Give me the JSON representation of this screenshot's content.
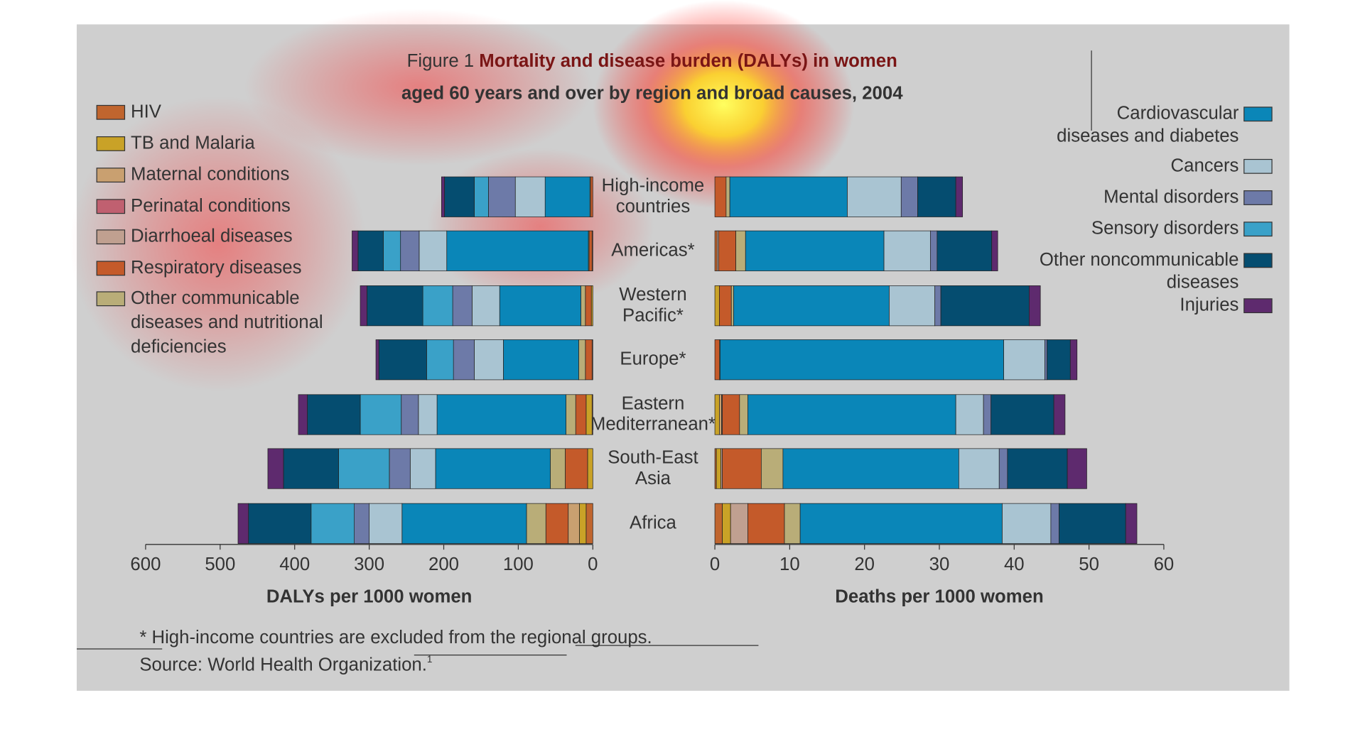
{
  "title": {
    "label": "Figure 1",
    "lines": [
      "Mortality and disease burden (DALYs) in women",
      "aged 60 years and over by region and broad causes, 2004"
    ]
  },
  "regions": [
    [
      "High-income",
      "countries"
    ],
    [
      "Americas*"
    ],
    [
      "Western",
      "Pacific*"
    ],
    [
      "Europe*"
    ],
    [
      "Eastern",
      "Mediterranean*"
    ],
    [
      "South-East",
      "Asia"
    ],
    [
      "Africa"
    ]
  ],
  "causes": [
    {
      "name": [
        "HIV"
      ],
      "color": "#c0652e"
    },
    {
      "name": [
        "TB and Malaria"
      ],
      "color": "#c9a227"
    },
    {
      "name": [
        "Maternal conditions"
      ],
      "color": "#c9a070"
    },
    {
      "name": [
        "Perinatal conditions"
      ],
      "color": "#c06070"
    },
    {
      "name": [
        "Diarrhoeal diseases"
      ],
      "color": "#c0a090"
    },
    {
      "name": [
        "Respiratory diseases"
      ],
      "color": "#c45a2a"
    },
    {
      "name": [
        "Other communicable",
        "diseases and nutritional",
        "deficiencies"
      ],
      "color": "#b9ad78"
    },
    {
      "name": [
        "Cardiovascular",
        "diseases and diabetes"
      ],
      "color": "#0a86b8"
    },
    {
      "name": [
        "Cancers"
      ],
      "color": "#a9c4d2"
    },
    {
      "name": [
        "Mental disorders"
      ],
      "color": "#6d7aa8"
    },
    {
      "name": [
        "Sensory disorders"
      ],
      "color": "#3aa1c8"
    },
    {
      "name": [
        "Other noncommunicable",
        "diseases"
      ],
      "color": "#054d70"
    },
    {
      "name": [
        "Injuries"
      ],
      "color": "#5e2a6e"
    }
  ],
  "chart_data": [
    {
      "type": "bar",
      "orientation": "horizontal",
      "stacked": true,
      "xlabel": "DALYs per 1000 women",
      "xlim": [
        600,
        0
      ],
      "xticks": [
        600,
        500,
        400,
        300,
        200,
        100,
        0
      ],
      "series": [
        {
          "values": [
            0,
            1,
            0,
            1,
            1,
            0,
            9
          ]
        },
        {
          "values": [
            0,
            0,
            2,
            0,
            8,
            7,
            9
          ]
        },
        {
          "values": [
            0,
            0,
            0,
            0,
            0,
            0,
            15
          ]
        },
        {
          "values": [
            0,
            0,
            0,
            0,
            0,
            0,
            0
          ]
        },
        {
          "values": [
            0,
            0,
            0,
            0,
            0,
            0,
            0
          ]
        },
        {
          "values": [
            3,
            4,
            8,
            9,
            14,
            30,
            30
          ]
        },
        {
          "values": [
            1,
            1,
            6,
            9,
            13,
            20,
            26
          ]
        },
        {
          "values": [
            60,
            190,
            109,
            101,
            173,
            154,
            167
          ]
        },
        {
          "values": [
            40,
            37,
            37,
            39,
            25,
            34,
            44
          ]
        },
        {
          "values": [
            36,
            25,
            26,
            28,
            23,
            28,
            20
          ]
        },
        {
          "values": [
            19,
            23,
            40,
            36,
            55,
            68,
            58
          ]
        },
        {
          "values": [
            40,
            34,
            75,
            64,
            71,
            74,
            84
          ]
        },
        {
          "values": [
            4,
            8,
            9,
            4,
            12,
            21,
            14
          ]
        }
      ]
    },
    {
      "type": "bar",
      "orientation": "horizontal",
      "stacked": true,
      "xlabel": "Deaths per 1000 women",
      "xlim": [
        0,
        60
      ],
      "xticks": [
        0,
        10,
        20,
        30,
        40,
        50,
        60
      ],
      "series": [
        {
          "values": [
            0,
            0.3,
            0,
            0,
            0,
            0.2,
            1.0
          ]
        },
        {
          "values": [
            0,
            0,
            0.6,
            0,
            0.6,
            0.6,
            1.1
          ]
        },
        {
          "values": [
            0,
            0,
            0,
            0,
            0.3,
            0,
            0
          ]
        },
        {
          "values": [
            0,
            0,
            0,
            0,
            0,
            0,
            0
          ]
        },
        {
          "values": [
            0,
            0.2,
            0,
            0,
            0.1,
            0.2,
            2.3
          ]
        },
        {
          "values": [
            1.5,
            2.3,
            1.6,
            0.6,
            2.3,
            5.2,
            4.9
          ]
        },
        {
          "values": [
            0.5,
            1.3,
            0.3,
            0.1,
            1.1,
            2.9,
            2.1
          ]
        },
        {
          "values": [
            15.7,
            18.5,
            20.8,
            37.9,
            27.8,
            23.5,
            27.0
          ]
        },
        {
          "values": [
            7.2,
            6.2,
            6.1,
            5.5,
            3.7,
            5.4,
            6.5
          ]
        },
        {
          "values": [
            2.2,
            0.9,
            0.8,
            0.3,
            1.0,
            1.1,
            1.1
          ]
        },
        {
          "values": [
            0,
            0,
            0,
            0,
            0,
            0,
            0
          ]
        },
        {
          "values": [
            5.1,
            7.3,
            11.8,
            3.1,
            8.4,
            8.0,
            8.9
          ]
        },
        {
          "values": [
            0.9,
            0.8,
            1.5,
            0.9,
            1.5,
            2.6,
            1.5
          ]
        }
      ]
    }
  ],
  "footnote": "* High-income countries are excluded from the regional groups.",
  "source": "Source: World Health Organization.",
  "source_ref": "1"
}
